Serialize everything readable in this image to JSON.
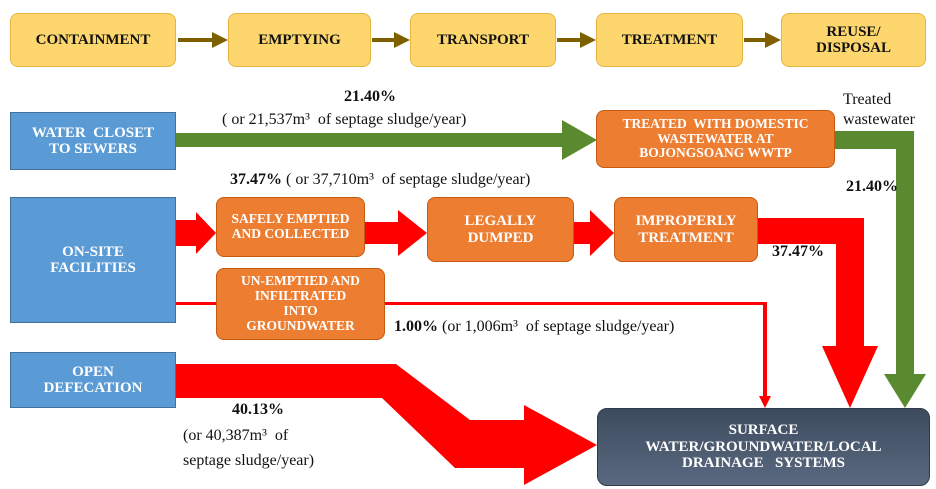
{
  "stages": [
    [
      "CONTAINMENT"
    ],
    [
      "EMPTYING"
    ],
    [
      "TRANSPORT"
    ],
    [
      "TREATMENT"
    ],
    [
      "REUSE/",
      "DISPOSAL"
    ]
  ],
  "sources": [
    [
      "WATER  CLOSET",
      "TO SEWERS"
    ],
    [
      "ON-SITE",
      "FACILITIES"
    ],
    [
      "OPEN",
      "DEFECATION"
    ]
  ],
  "nodes": {
    "treated": [
      "TREATED  WITH DOMESTIC",
      "WASTEWATER AT",
      "BOJONGSOANG WWTP"
    ],
    "safely_emptied": [
      "SAFELY EMPTIED",
      "AND COLLECTED"
    ],
    "legally_dumped": [
      "LEGALLY",
      "DUMPED"
    ],
    "improperly": [
      "IMPROPERLY",
      "TREATMENT"
    ],
    "unemptied": [
      "UN-EMPTIED AND",
      "INFILTRATED",
      "INTO",
      "GROUNDWATER"
    ],
    "surface": [
      "SURFACE",
      "WATER/GROUNDWATER/LOCAL",
      "DRAINAGE   SYSTEMS"
    ]
  },
  "flows": {
    "sewer": {
      "percent": "21.40%",
      "detail": "( or 21,537m³  of septage sludge/year)",
      "out_label": [
        "Treated",
        "wastewater"
      ],
      "out_percent": "21.40%"
    },
    "onsite": {
      "percent": "37.47%",
      "detail": " ( or 37,710m³  of septage sludge/year)",
      "out_percent": "37.47%"
    },
    "infiltrated": {
      "percent": "1.00%",
      "detail": " (or 1,006m³  of septage sludge/year)"
    },
    "open": {
      "percent": "40.13%",
      "detail": [
        "(or 40,387m³  of",
        "septage sludge/year)"
      ]
    }
  }
}
